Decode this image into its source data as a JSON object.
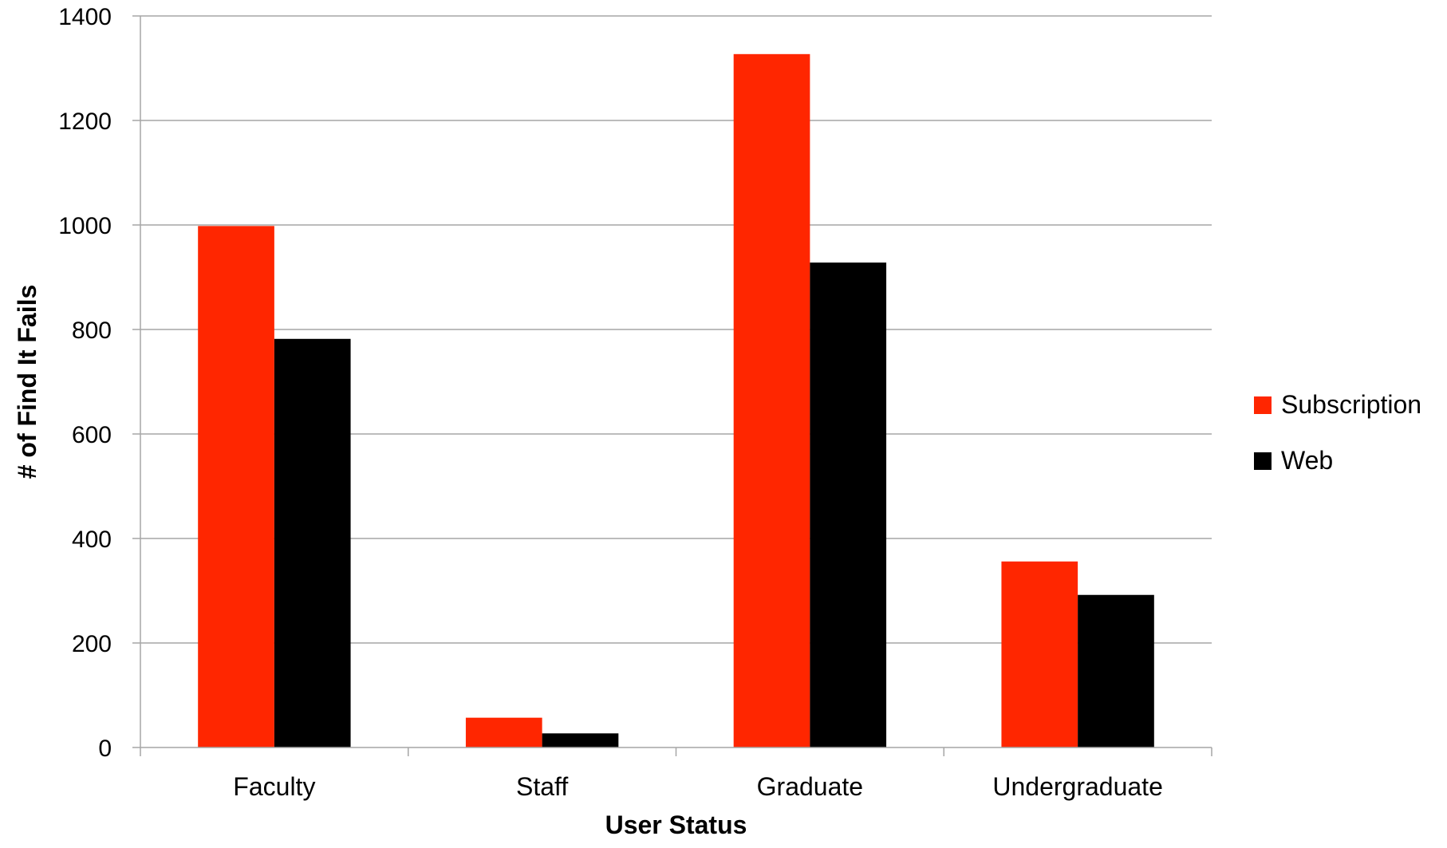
{
  "chart_data": {
    "type": "bar",
    "title": "",
    "xlabel": "User Status",
    "ylabel": "# of Find It Fails",
    "categories": [
      "Faculty",
      "Staff",
      "Graduate",
      "Undergraduate"
    ],
    "series": [
      {
        "name": "Subscription",
        "color": "#ff2600",
        "values": [
          998,
          57,
          1327,
          356
        ]
      },
      {
        "name": "Web",
        "color": "#000000",
        "values": [
          782,
          27,
          928,
          292
        ]
      }
    ],
    "ylim": [
      0,
      1400
    ],
    "yticks": [
      0,
      200,
      400,
      600,
      800,
      1000,
      1200,
      1400
    ],
    "grid": true,
    "legend_position": "right"
  }
}
